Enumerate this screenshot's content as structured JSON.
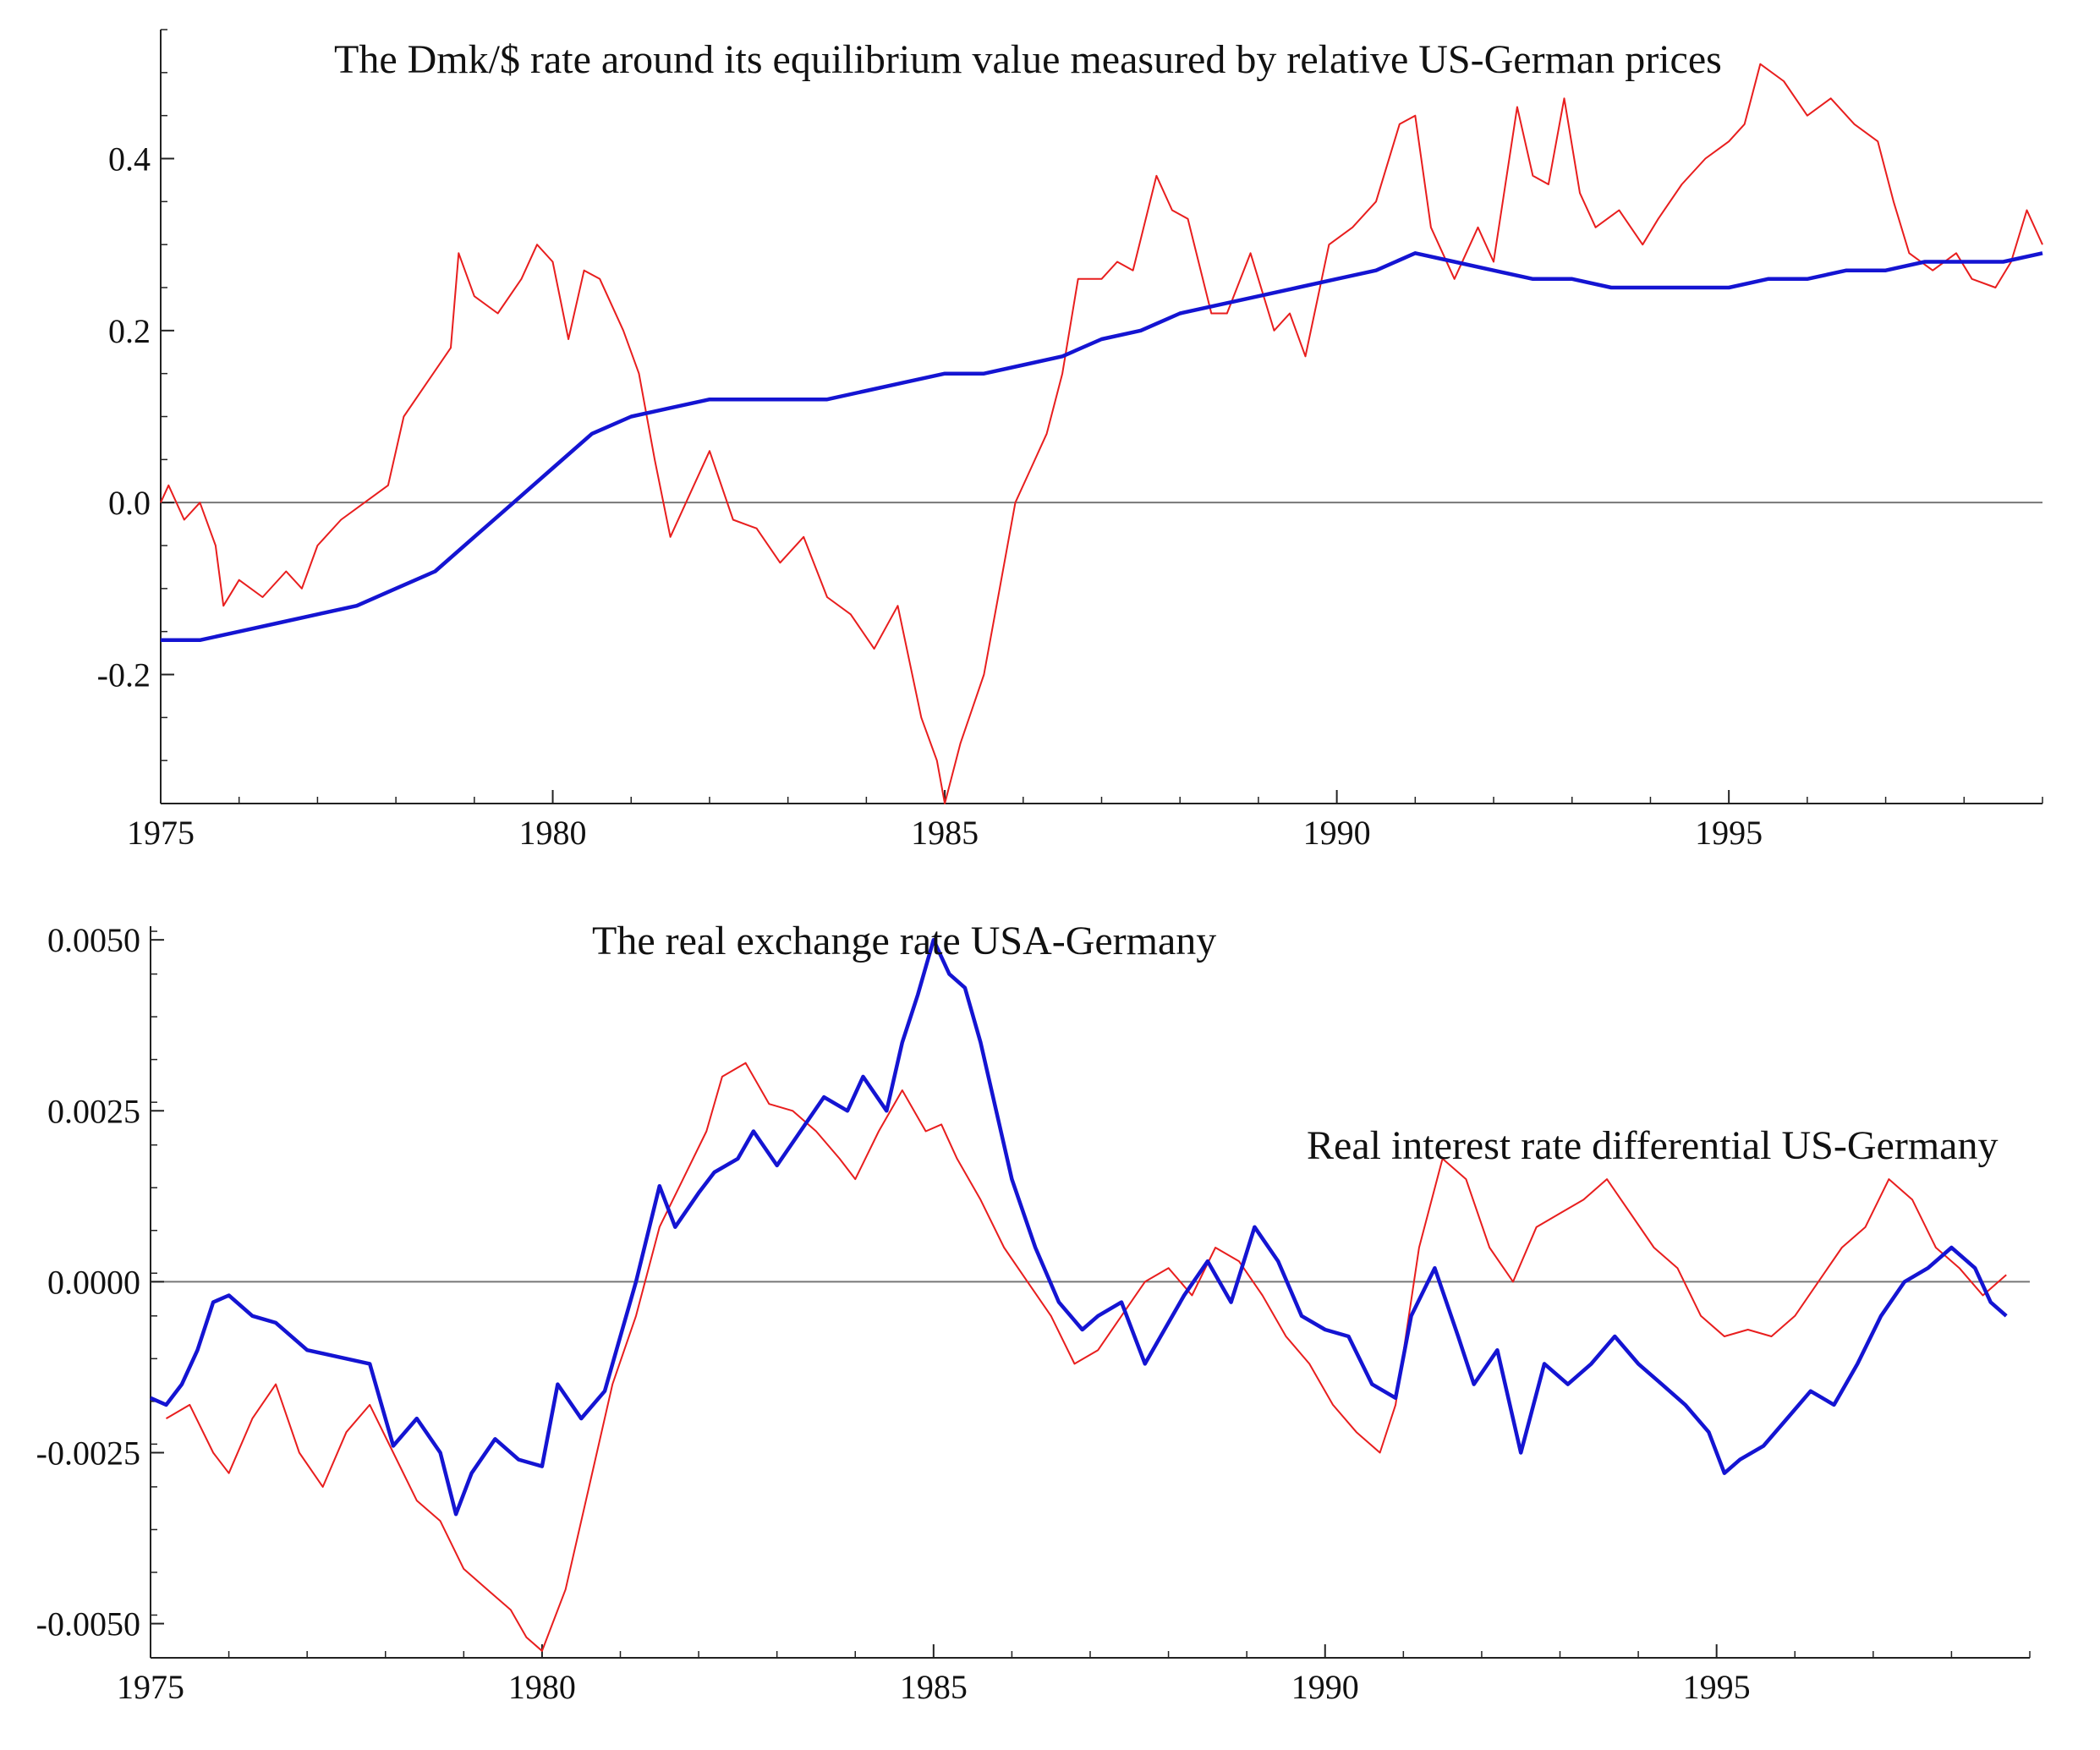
{
  "chart_data": [
    {
      "type": "line",
      "title": "The Dmk/$ rate around its equilibrium value measured by relative US-German prices",
      "xlabel": "",
      "ylabel": "",
      "xlim": [
        1975,
        1999
      ],
      "ylim": [
        -0.35,
        0.55
      ],
      "x_ticks": [
        1975,
        1980,
        1985,
        1990,
        1995
      ],
      "x_tick_labels": [
        "1975",
        "1980",
        "1985",
        "1990",
        "1995"
      ],
      "y_ticks": [
        -0.2,
        0.0,
        0.2,
        0.4
      ],
      "y_tick_labels": [
        "-0.2",
        "0.0",
        "0.2",
        "0.4"
      ],
      "reference_line": 0.0,
      "series": [
        {
          "name": "Dmk/$ rate (red)",
          "color": "#e81e1e",
          "x": [
            1975.0,
            1975.1,
            1975.3,
            1975.5,
            1975.7,
            1975.8,
            1976.0,
            1976.3,
            1976.6,
            1976.8,
            1977.0,
            1977.3,
            1977.6,
            1977.9,
            1978.1,
            1978.4,
            1978.7,
            1978.8,
            1979.0,
            1979.3,
            1979.6,
            1979.8,
            1980.0,
            1980.2,
            1980.4,
            1980.6,
            1980.9,
            1981.1,
            1981.3,
            1981.5,
            1981.7,
            1982.0,
            1982.3,
            1982.6,
            1982.9,
            1983.2,
            1983.5,
            1983.8,
            1984.1,
            1984.4,
            1984.7,
            1984.9,
            1985.0,
            1985.2,
            1985.5,
            1985.7,
            1985.9,
            1986.1,
            1986.3,
            1986.5,
            1986.7,
            1987.0,
            1987.2,
            1987.4,
            1987.7,
            1987.9,
            1988.1,
            1988.4,
            1988.6,
            1988.9,
            1989.2,
            1989.4,
            1989.6,
            1989.9,
            1990.2,
            1990.5,
            1990.8,
            1991.0,
            1991.2,
            1991.5,
            1991.8,
            1992.0,
            1992.3,
            1992.5,
            1992.7,
            1992.9,
            1993.1,
            1993.3,
            1993.6,
            1993.9,
            1994.1,
            1994.4,
            1994.7,
            1995.0,
            1995.2,
            1995.4,
            1995.7,
            1996.0,
            1996.3,
            1996.6,
            1996.9,
            1997.1,
            1997.3,
            1997.6,
            1997.9,
            1998.1,
            1998.4,
            1998.6,
            1998.8,
            1999.0
          ],
          "values": [
            0.0,
            0.02,
            -0.02,
            0.0,
            -0.05,
            -0.12,
            -0.09,
            -0.11,
            -0.08,
            -0.1,
            -0.05,
            -0.02,
            0.0,
            0.02,
            0.1,
            0.14,
            0.18,
            0.29,
            0.24,
            0.22,
            0.26,
            0.3,
            0.28,
            0.19,
            0.27,
            0.26,
            0.2,
            0.15,
            0.05,
            -0.04,
            0.0,
            0.06,
            -0.02,
            -0.03,
            -0.07,
            -0.04,
            -0.11,
            -0.13,
            -0.17,
            -0.12,
            -0.25,
            -0.3,
            -0.35,
            -0.28,
            -0.2,
            -0.1,
            0.0,
            0.04,
            0.08,
            0.15,
            0.26,
            0.26,
            0.28,
            0.27,
            0.38,
            0.34,
            0.33,
            0.22,
            0.22,
            0.29,
            0.2,
            0.22,
            0.17,
            0.3,
            0.32,
            0.35,
            0.44,
            0.45,
            0.32,
            0.26,
            0.32,
            0.28,
            0.46,
            0.38,
            0.37,
            0.47,
            0.36,
            0.32,
            0.34,
            0.3,
            0.33,
            0.37,
            0.4,
            0.42,
            0.44,
            0.51,
            0.49,
            0.45,
            0.47,
            0.44,
            0.42,
            0.35,
            0.29,
            0.27,
            0.29,
            0.26,
            0.25,
            0.28,
            0.34,
            0.3
          ]
        },
        {
          "name": "Equilibrium value (blue)",
          "color": "#1414d2",
          "x": [
            1975.0,
            1975.5,
            1976.0,
            1976.5,
            1977.0,
            1977.5,
            1978.0,
            1978.5,
            1979.0,
            1979.5,
            1980.0,
            1980.5,
            1981.0,
            1981.5,
            1982.0,
            1982.5,
            1983.0,
            1983.5,
            1984.0,
            1984.5,
            1985.0,
            1985.5,
            1986.0,
            1986.5,
            1987.0,
            1987.5,
            1988.0,
            1988.5,
            1989.0,
            1989.5,
            1990.0,
            1990.5,
            1991.0,
            1991.5,
            1992.0,
            1992.5,
            1993.0,
            1993.5,
            1994.0,
            1994.5,
            1995.0,
            1995.5,
            1996.0,
            1996.5,
            1997.0,
            1997.5,
            1998.0,
            1998.5,
            1999.0
          ],
          "values": [
            -0.16,
            -0.16,
            -0.15,
            -0.14,
            -0.13,
            -0.12,
            -0.1,
            -0.08,
            -0.04,
            0.0,
            0.04,
            0.08,
            0.1,
            0.11,
            0.12,
            0.12,
            0.12,
            0.12,
            0.13,
            0.14,
            0.15,
            0.15,
            0.16,
            0.17,
            0.19,
            0.2,
            0.22,
            0.23,
            0.24,
            0.25,
            0.26,
            0.27,
            0.29,
            0.28,
            0.27,
            0.26,
            0.26,
            0.25,
            0.25,
            0.25,
            0.25,
            0.26,
            0.26,
            0.27,
            0.27,
            0.28,
            0.28,
            0.28,
            0.29
          ]
        }
      ]
    },
    {
      "type": "line",
      "title": "The real exchange rate USA-Germany",
      "annotations": [
        "Real interest rate differential US-Germany"
      ],
      "xlabel": "",
      "ylabel": "",
      "xlim": [
        1975,
        1999
      ],
      "ylim": [
        -0.0055,
        0.0052
      ],
      "x_ticks": [
        1975,
        1980,
        1985,
        1990,
        1995
      ],
      "x_tick_labels": [
        "1975",
        "1980",
        "1985",
        "1990",
        "1995"
      ],
      "y_ticks": [
        -0.005,
        -0.0025,
        0.0,
        0.0025,
        0.005
      ],
      "y_tick_labels": [
        "-0.0050",
        "-0.0025",
        "0.0000",
        "0.0025",
        "0.0050"
      ],
      "reference_line": 0.0,
      "series": [
        {
          "name": "Real exchange rate USA-Germany (blue)",
          "color": "#1414d2",
          "x": [
            1975.0,
            1975.2,
            1975.4,
            1975.6,
            1975.8,
            1976.0,
            1976.3,
            1976.6,
            1977.0,
            1977.4,
            1977.8,
            1978.1,
            1978.4,
            1978.7,
            1978.9,
            1979.1,
            1979.4,
            1979.7,
            1980.0,
            1980.2,
            1980.5,
            1980.8,
            1981.0,
            1981.2,
            1981.5,
            1981.7,
            1982.0,
            1982.2,
            1982.5,
            1982.7,
            1983.0,
            1983.3,
            1983.6,
            1983.9,
            1984.1,
            1984.4,
            1984.6,
            1984.8,
            1985.0,
            1985.2,
            1985.4,
            1985.6,
            1985.8,
            1986.0,
            1986.3,
            1986.6,
            1986.9,
            1987.1,
            1987.4,
            1987.7,
            1987.9,
            1988.2,
            1988.5,
            1988.8,
            1989.1,
            1989.4,
            1989.7,
            1990.0,
            1990.3,
            1990.6,
            1990.9,
            1991.1,
            1991.4,
            1991.7,
            1991.9,
            1992.2,
            1992.5,
            1992.8,
            1993.1,
            1993.4,
            1993.7,
            1994.0,
            1994.3,
            1994.6,
            1994.9,
            1995.1,
            1995.3,
            1995.6,
            1995.9,
            1996.2,
            1996.5,
            1996.8,
            1997.1,
            1997.4,
            1997.7,
            1998.0,
            1998.3,
            1998.5,
            1998.7
          ],
          "values": [
            -0.0017,
            -0.0018,
            -0.0015,
            -0.001,
            -0.0003,
            -0.0002,
            -0.0005,
            -0.0006,
            -0.001,
            -0.0011,
            -0.0012,
            -0.0024,
            -0.002,
            -0.0025,
            -0.0034,
            -0.0028,
            -0.0023,
            -0.0026,
            -0.0027,
            -0.0015,
            -0.002,
            -0.0016,
            -0.0008,
            0.0,
            0.0014,
            0.0008,
            0.0013,
            0.0016,
            0.0018,
            0.0022,
            0.0017,
            0.0022,
            0.0027,
            0.0025,
            0.003,
            0.0025,
            0.0035,
            0.0042,
            0.005,
            0.0045,
            0.0043,
            0.0035,
            0.0025,
            0.0015,
            0.0005,
            -0.0003,
            -0.0007,
            -0.0005,
            -0.0003,
            -0.0012,
            -0.0008,
            -0.0002,
            0.0003,
            -0.0003,
            0.0008,
            0.0003,
            -0.0005,
            -0.0007,
            -0.0008,
            -0.0015,
            -0.0017,
            -0.0005,
            0.0002,
            -0.0008,
            -0.0015,
            -0.001,
            -0.0025,
            -0.0012,
            -0.0015,
            -0.0012,
            -0.0008,
            -0.0012,
            -0.0015,
            -0.0018,
            -0.0022,
            -0.0028,
            -0.0026,
            -0.0024,
            -0.002,
            -0.0016,
            -0.0018,
            -0.0012,
            -0.0005,
            0.0,
            0.0002,
            0.0005,
            0.0002,
            -0.0003,
            -0.0005
          ]
        },
        {
          "name": "Real interest rate differential US-Germany (red)",
          "color": "#e81e1e",
          "x": [
            1975.2,
            1975.5,
            1975.8,
            1976.0,
            1976.3,
            1976.6,
            1976.9,
            1977.2,
            1977.5,
            1977.8,
            1978.1,
            1978.4,
            1978.7,
            1979.0,
            1979.3,
            1979.6,
            1979.8,
            1980.0,
            1980.3,
            1980.6,
            1980.9,
            1981.2,
            1981.5,
            1981.8,
            1982.1,
            1982.3,
            1982.6,
            1982.9,
            1983.2,
            1983.5,
            1983.8,
            1984.0,
            1984.3,
            1984.6,
            1984.9,
            1985.1,
            1985.3,
            1985.6,
            1985.9,
            1986.2,
            1986.5,
            1986.8,
            1987.1,
            1987.4,
            1987.7,
            1988.0,
            1988.3,
            1988.6,
            1988.9,
            1989.2,
            1989.5,
            1989.8,
            1990.1,
            1990.4,
            1990.7,
            1990.9,
            1991.2,
            1991.5,
            1991.8,
            1992.1,
            1992.4,
            1992.7,
            1993.0,
            1993.3,
            1993.6,
            1993.9,
            1994.2,
            1994.5,
            1994.8,
            1995.1,
            1995.4,
            1995.7,
            1996.0,
            1996.3,
            1996.6,
            1996.9,
            1997.2,
            1997.5,
            1997.8,
            1998.1,
            1998.4,
            1998.7
          ],
          "values": [
            -0.002,
            -0.0018,
            -0.0025,
            -0.0028,
            -0.002,
            -0.0015,
            -0.0025,
            -0.003,
            -0.0022,
            -0.0018,
            -0.0025,
            -0.0032,
            -0.0035,
            -0.0042,
            -0.0045,
            -0.0048,
            -0.0052,
            -0.0054,
            -0.0045,
            -0.003,
            -0.0015,
            -0.0005,
            0.0008,
            0.0015,
            0.0022,
            0.003,
            0.0032,
            0.0026,
            0.0025,
            0.0022,
            0.0018,
            0.0015,
            0.0022,
            0.0028,
            0.0022,
            0.0023,
            0.0018,
            0.0012,
            0.0005,
            0.0,
            -0.0005,
            -0.0012,
            -0.001,
            -0.0005,
            0.0,
            0.0002,
            -0.0002,
            0.0005,
            0.0003,
            -0.0002,
            -0.0008,
            -0.0012,
            -0.0018,
            -0.0022,
            -0.0025,
            -0.0018,
            0.0005,
            0.0018,
            0.0015,
            0.0005,
            0.0,
            0.0008,
            0.001,
            0.0012,
            0.0015,
            0.001,
            0.0005,
            0.0002,
            -0.0005,
            -0.0008,
            -0.0007,
            -0.0008,
            -0.0005,
            0.0,
            0.0005,
            0.0008,
            0.0015,
            0.0012,
            0.0005,
            0.0002,
            -0.0002,
            0.0001
          ]
        }
      ]
    }
  ]
}
